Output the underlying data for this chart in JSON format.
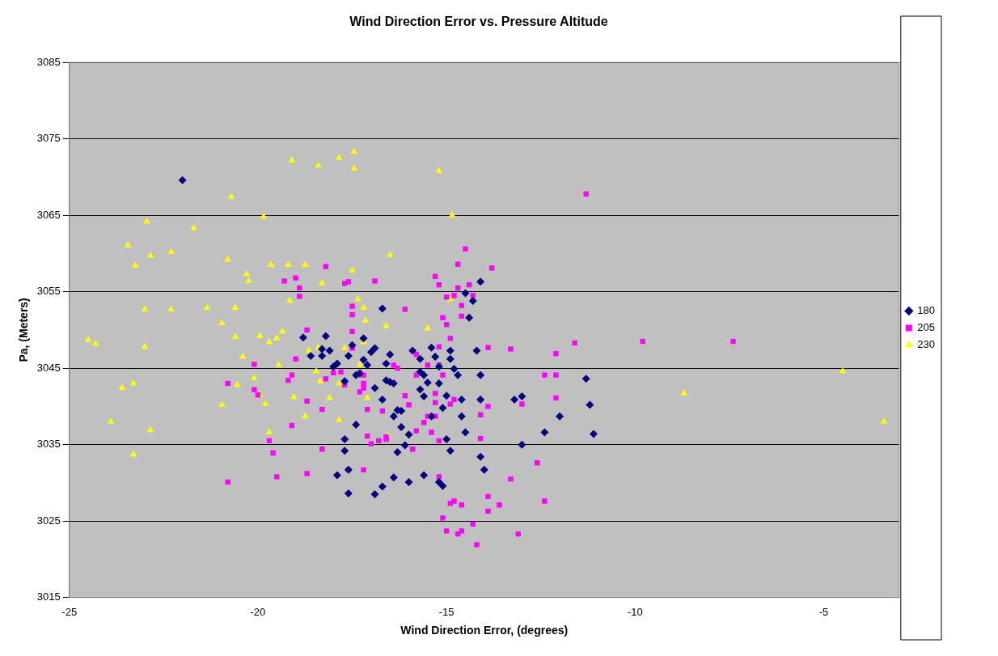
{
  "chart_data": {
    "type": "scatter",
    "title": "Wind Direction Error vs. Pressure Altitude",
    "xlabel": "Wind Direction Error, (degrees)",
    "ylabel": "Pa, (Meters)",
    "xlim": [
      -25,
      -3
    ],
    "xticks": [
      -25,
      -20,
      -15,
      -10,
      -5
    ],
    "ylim": [
      3015,
      3085
    ],
    "yticks": [
      3015,
      3025,
      3035,
      3045,
      3055,
      3065,
      3075,
      3085
    ],
    "grid": "y",
    "legend": "right",
    "series": [
      {
        "name": "180",
        "color": "#000080",
        "marker": "diamond",
        "x": [
          -22.0,
          -18.8,
          -18.6,
          -18.3,
          -18.3,
          -18.2,
          -18.1,
          -18.0,
          -17.9,
          -17.7,
          -17.6,
          -17.4,
          -17.5,
          -17.3,
          -17.2,
          -17.2,
          -17.1,
          -17.0,
          -16.9,
          -16.9,
          -16.7,
          -16.7,
          -16.6,
          -16.6,
          -16.5,
          -16.5,
          -16.4,
          -16.4,
          -16.3,
          -16.2,
          -16.2,
          -16.1,
          -16.0,
          -15.9,
          -15.7,
          -15.7,
          -15.7,
          -15.6,
          -15.6,
          -15.5,
          -15.4,
          -15.4,
          -15.3,
          -15.2,
          -15.2,
          -15.1,
          -15.0,
          -15.0,
          -14.9,
          -14.9,
          -14.9,
          -14.8,
          -14.7,
          -14.6,
          -14.6,
          -14.5,
          -14.3,
          -14.1,
          -14.4,
          -14.2,
          -14.1,
          -14.1,
          -14.0,
          -15.2,
          -15.1,
          -16.0,
          -15.6,
          -16.7,
          -16.4,
          -17.4,
          -17.7,
          -17.6,
          -17.7,
          -17.9,
          -17.6,
          -16.9,
          -16.3,
          -14.5,
          -14.1,
          -13.2,
          -13.0,
          -13.0,
          -12.4,
          -12.0,
          -11.3,
          -11.2,
          -11.1
        ],
        "values": [
          3069.6,
          3049.0,
          3046.6,
          3046.6,
          3047.5,
          3049.2,
          3047.3,
          3045.2,
          3045.6,
          3043.3,
          3046.6,
          3044.1,
          3048.0,
          3044.3,
          3048.9,
          3046.1,
          3045.4,
          3047.1,
          3047.6,
          3042.4,
          3052.8,
          3040.9,
          3045.6,
          3043.4,
          3046.8,
          3043.2,
          3038.7,
          3043.0,
          3039.5,
          3039.4,
          3037.3,
          3034.9,
          3036.3,
          3047.3,
          3046.2,
          3042.2,
          3044.5,
          3044.1,
          3041.3,
          3043.1,
          3047.7,
          3038.7,
          3046.5,
          3045.2,
          3043.0,
          3039.8,
          3035.7,
          3041.4,
          3034.2,
          3047.3,
          3046.2,
          3044.9,
          3044.1,
          3040.9,
          3038.7,
          3054.8,
          3053.8,
          3056.3,
          3051.6,
          3047.3,
          3044.1,
          3033.4,
          3031.7,
          3030.1,
          3029.6,
          3030.1,
          3031.0,
          3029.5,
          3030.7,
          3037.6,
          3035.7,
          3031.7,
          3034.2,
          3031.0,
          3028.6,
          3028.5,
          3034.0,
          3036.6,
          3040.9,
          3040.9,
          3041.3,
          3035.0,
          3036.6,
          3038.7,
          3043.6,
          3040.2,
          3036.4
        ]
      },
      {
        "name": "205",
        "color": "#ff00ff",
        "marker": "square",
        "x": [
          -11.3,
          -7.4,
          -9.8,
          -11.6,
          -12.1,
          -12.1,
          -12.1,
          -12.4,
          -12.6,
          -12.4,
          -13.0,
          -13.3,
          -13.3,
          -13.1,
          -13.6,
          -13.9,
          -13.9,
          -14.3,
          -14.6,
          -14.2,
          -14.7,
          -15.0,
          -15.1,
          -14.9,
          -14.8,
          -14.6,
          -15.2,
          -15.2,
          -15.3,
          -14.9,
          -14.8,
          -15.3,
          -15.3,
          -15.1,
          -15.2,
          -15.5,
          -15.2,
          -14.9,
          -15.0,
          -15.1,
          -15.0,
          -14.8,
          -14.7,
          -14.5,
          -14.7,
          -14.6,
          -14.6,
          -14.4,
          -14.3,
          -13.9,
          -13.8,
          -13.9,
          -14.1,
          -14.1,
          -15.2,
          -15.3,
          -15.6,
          -15.4,
          -15.5,
          -16.0,
          -16.1,
          -16.1,
          -15.9,
          -15.8,
          -15.8,
          -15.8,
          -16.3,
          -16.4,
          -16.6,
          -16.6,
          -16.8,
          -17.0,
          -16.7,
          -17.1,
          -17.1,
          -17.2,
          -17.2,
          -17.2,
          -17.3,
          -17.2,
          -17.5,
          -17.5,
          -17.5,
          -17.5,
          -17.7,
          -17.6,
          -16.9,
          -17.3,
          -17.8,
          -17.7,
          -17.6,
          -18.0,
          -18.2,
          -18.3,
          -18.3,
          -18.2,
          -18.7,
          -18.7,
          -18.9,
          -18.9,
          -19.0,
          -19.0,
          -19.1,
          -19.1,
          -19.3,
          -19.2,
          -19.5,
          -19.6,
          -19.7,
          -20.0,
          -20.1,
          -20.1,
          -20.8,
          -20.8,
          -18.7
        ],
        "values": [
          3067.8,
          3048.5,
          3048.5,
          3048.3,
          3046.9,
          3044.1,
          3041.1,
          3044.1,
          3032.6,
          3027.6,
          3040.3,
          3047.5,
          3030.5,
          3023.3,
          3027.1,
          3028.2,
          3026.3,
          3024.6,
          3023.7,
          3021.9,
          3023.3,
          3023.7,
          3025.4,
          3027.3,
          3027.6,
          3027.1,
          3030.8,
          3035.5,
          3038.7,
          3040.3,
          3040.9,
          3040.5,
          3041.7,
          3044.1,
          3045.4,
          3045.4,
          3047.8,
          3048.9,
          3050.7,
          3051.6,
          3054.3,
          3054.5,
          3055.5,
          3060.6,
          3058.6,
          3053.2,
          3051.8,
          3055.9,
          3054.5,
          3047.7,
          3058.1,
          3040.0,
          3035.8,
          3038.9,
          3055.9,
          3057.0,
          3037.9,
          3036.6,
          3038.7,
          3040.2,
          3052.7,
          3041.4,
          3034.4,
          3036.8,
          3046.8,
          3044.1,
          3045.0,
          3045.4,
          3035.7,
          3036.0,
          3035.5,
          3035.1,
          3039.4,
          3036.1,
          3039.6,
          3044.1,
          3043.0,
          3042.4,
          3041.9,
          3031.7,
          3047.6,
          3049.8,
          3053.1,
          3052.0,
          3056.1,
          3056.3,
          3056.4,
          3044.4,
          3044.5,
          3042.8,
          3031.7,
          3044.4,
          3043.6,
          3039.6,
          3034.4,
          3058.3,
          3040.7,
          3050.0,
          3055.5,
          3054.4,
          3056.8,
          3046.2,
          3037.5,
          3044.1,
          3056.4,
          3043.4,
          3030.8,
          3033.9,
          3035.5,
          3041.5,
          3042.2,
          3045.5,
          3043.0,
          3030.1,
          3031.2
        ]
      },
      {
        "name": "230",
        "color": "#ffff00",
        "marker": "triangle",
        "x": [
          -24.5,
          -24.3,
          -23.6,
          -23.9,
          -23.3,
          -23.3,
          -22.85,
          -23.0,
          -23.0,
          -23.25,
          -22.95,
          -23.45,
          -22.85,
          -22.3,
          -21.7,
          -22.3,
          -21.35,
          -20.95,
          -20.95,
          -20.8,
          -20.7,
          -20.6,
          -20.6,
          -20.55,
          -20.4,
          -20.3,
          -20.25,
          -20.1,
          -19.95,
          -19.95,
          -19.85,
          -19.8,
          -19.7,
          -19.7,
          -19.65,
          -19.45,
          -19.35,
          -19.5,
          -19.2,
          -19.15,
          -19.1,
          -19.05,
          -18.75,
          -18.75,
          -18.65,
          -18.45,
          -18.4,
          -18.4,
          -18.35,
          -18.3,
          -18.1,
          -17.9,
          -17.85,
          -17.85,
          -17.85,
          -17.7,
          -17.5,
          -17.45,
          -17.45,
          -17.35,
          -17.3,
          -17.2,
          -17.2,
          -17.15,
          -17.1,
          -16.6,
          -16.5,
          -16.55,
          -15.5,
          -15.2,
          -14.9,
          -14.85,
          -8.7,
          -4.5,
          -3.4
        ],
        "values": [
          3048.7,
          3048.2,
          3042.4,
          3038.0,
          3043.0,
          3033.7,
          3036.9,
          3047.8,
          3052.7,
          3058.4,
          3064.2,
          3061.1,
          3059.7,
          3060.2,
          3063.3,
          3052.7,
          3052.9,
          3040.2,
          3050.9,
          3059.2,
          3067.4,
          3049.1,
          3052.9,
          3042.8,
          3046.5,
          3057.3,
          3056.4,
          3043.7,
          3041.5,
          3049.2,
          3064.8,
          3040.3,
          3036.6,
          3048.4,
          3058.5,
          3045.4,
          3049.8,
          3048.9,
          3058.5,
          3053.8,
          3072.2,
          3041.2,
          3058.5,
          3038.7,
          3047.3,
          3044.6,
          3071.5,
          3047.7,
          3043.3,
          3056.1,
          3041.1,
          3045.7,
          3072.5,
          3043.0,
          3038.2,
          3047.6,
          3057.8,
          3073.3,
          3071.1,
          3054.0,
          3045.4,
          3048.4,
          3052.9,
          3051.2,
          3041.1,
          3050.5,
          3059.8,
          3036.1,
          3050.2,
          3070.8,
          3054.0,
          3065.0,
          3041.7,
          3044.6,
          3038.0
        ]
      }
    ]
  }
}
